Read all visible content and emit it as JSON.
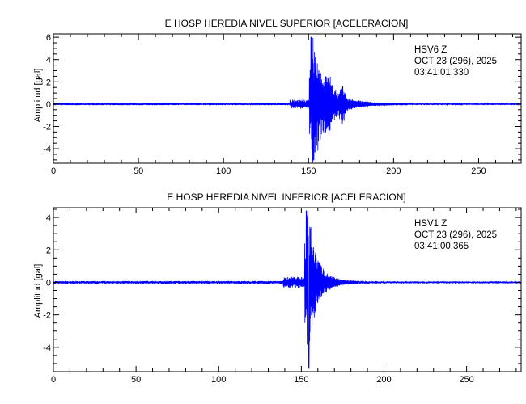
{
  "chart_data": [
    {
      "type": "line",
      "title": "E HOSP HEREDIA NIVEL SUPERIOR [ACELERACION]",
      "ylabel": "Amplitud [gal]",
      "xlabel": "",
      "xlim": [
        0,
        275
      ],
      "ylim": [
        -5.3,
        6.3
      ],
      "xticks": [
        0,
        50,
        100,
        150,
        200,
        250
      ],
      "yticks": [
        -4,
        -2,
        0,
        2,
        4,
        6
      ],
      "annotation": [
        "HSV6   Z",
        "OCT 23 (296), 2025",
        "03:41:01.330"
      ],
      "series_color": "#0000ff",
      "waveform": {
        "noise_level": 0.07,
        "p_arrival": 139,
        "p_amp": 0.35,
        "s_arrival": 150.5,
        "s_peak_time": 151.5,
        "peak_max": 6.0,
        "peak_min": -5.0,
        "peak_decay": 8,
        "coda_amp": 0.6,
        "coda_decay": 18,
        "sub_events": [
          [
            162,
            1.7
          ],
          [
            170,
            1.4
          ]
        ]
      }
    },
    {
      "type": "line",
      "title": "E HOSP HEREDIA NIVEL INFERIOR [ACELERACION]",
      "ylabel": "Amplitud [gal]",
      "xlabel": "",
      "xlim": [
        0,
        283
      ],
      "ylim": [
        -5.5,
        4.6
      ],
      "xticks": [
        0,
        50,
        100,
        150,
        200,
        250
      ],
      "yticks": [
        -4,
        -2,
        0,
        2,
        4
      ],
      "annotation": [
        "HSV1   Z",
        "OCT 23 (296), 2025",
        "03:41:00.365"
      ],
      "series_color": "#0000ff",
      "waveform": {
        "noise_level": 0.06,
        "p_arrival": 139,
        "p_amp": 0.28,
        "s_arrival": 152,
        "s_peak_time": 153,
        "peak_max": 4.4,
        "peak_min": -5.3,
        "peak_decay": 5,
        "coda_amp": 0.35,
        "coda_decay": 14,
        "sub_events": []
      }
    }
  ]
}
